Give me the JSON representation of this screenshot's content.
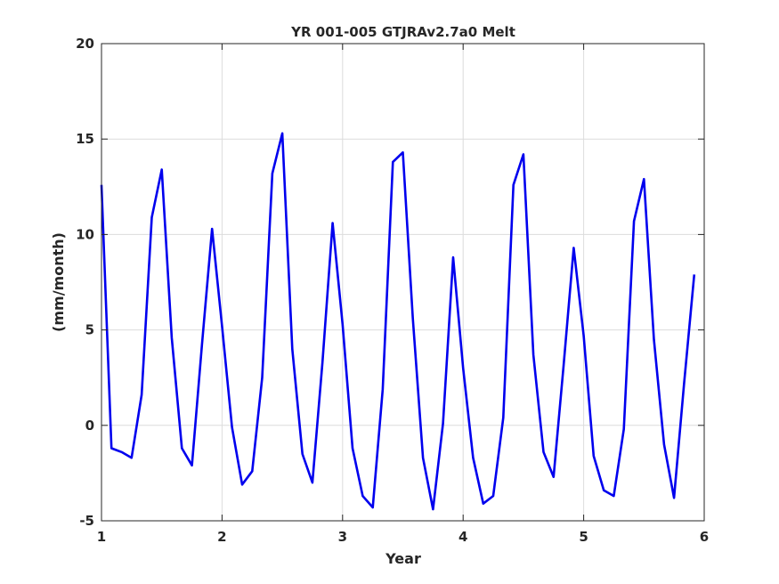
{
  "chart_data": {
    "type": "line",
    "title": "YR 001-005 GTJRAv2.7a0 Melt",
    "xlabel": "Year",
    "ylabel": "(mm/month)",
    "xlim": [
      1,
      6
    ],
    "ylim": [
      -5,
      20
    ],
    "xticks": [
      1,
      2,
      3,
      4,
      5,
      6
    ],
    "xtick_labels": [
      "1",
      "2",
      "3",
      "4",
      "5",
      "6"
    ],
    "yticks": [
      -5,
      0,
      5,
      10,
      15,
      20
    ],
    "ytick_labels": [
      "-5",
      "0",
      "5",
      "10",
      "15",
      "20"
    ],
    "grid": true,
    "series": [
      {
        "color": "#0000ee",
        "x": [
          1.0,
          1.083,
          1.167,
          1.25,
          1.333,
          1.417,
          1.5,
          1.583,
          1.667,
          1.75,
          1.833,
          1.917,
          2.0,
          2.083,
          2.167,
          2.25,
          2.333,
          2.417,
          2.5,
          2.583,
          2.667,
          2.75,
          2.833,
          2.917,
          3.0,
          3.083,
          3.167,
          3.25,
          3.333,
          3.417,
          3.5,
          3.583,
          3.667,
          3.75,
          3.833,
          3.917,
          4.0,
          4.083,
          4.167,
          4.25,
          4.333,
          4.417,
          4.5,
          4.583,
          4.667,
          4.75,
          4.833,
          4.917,
          5.0,
          5.083,
          5.167,
          5.25,
          5.333,
          5.417,
          5.5,
          5.583,
          5.667,
          5.75,
          5.833,
          5.917
        ],
        "y": [
          12.6,
          -1.2,
          -1.4,
          -1.7,
          1.6,
          10.9,
          13.4,
          4.6,
          -1.2,
          -2.1,
          4.2,
          10.3,
          5.2,
          -0.1,
          -3.1,
          -2.4,
          2.5,
          13.2,
          15.3,
          4.0,
          -1.5,
          -3.0,
          3.3,
          10.6,
          5.3,
          -1.2,
          -3.7,
          -4.3,
          1.9,
          13.8,
          14.3,
          5.6,
          -1.7,
          -4.4,
          0.1,
          8.8,
          3.0,
          -1.7,
          -4.1,
          -3.7,
          0.4,
          12.6,
          14.2,
          3.7,
          -1.4,
          -2.7,
          3.1,
          9.3,
          4.7,
          -1.6,
          -3.4,
          -3.7,
          -0.2,
          10.7,
          12.9,
          4.5,
          -1.0,
          -3.8,
          2.2,
          7.9
        ]
      }
    ]
  }
}
